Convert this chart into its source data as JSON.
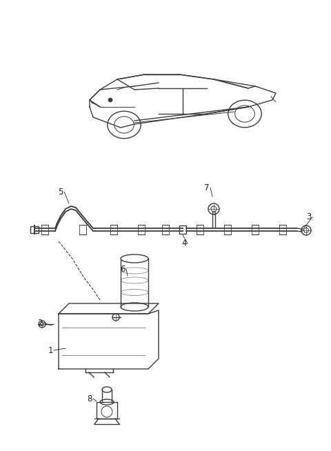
{
  "bg_color": "#ffffff",
  "line_color": "#3a3a3a",
  "label_color": "#222222",
  "label_fontsize": 8.5,
  "fig_width": 4.8,
  "fig_height": 6.54,
  "dpi": 100
}
